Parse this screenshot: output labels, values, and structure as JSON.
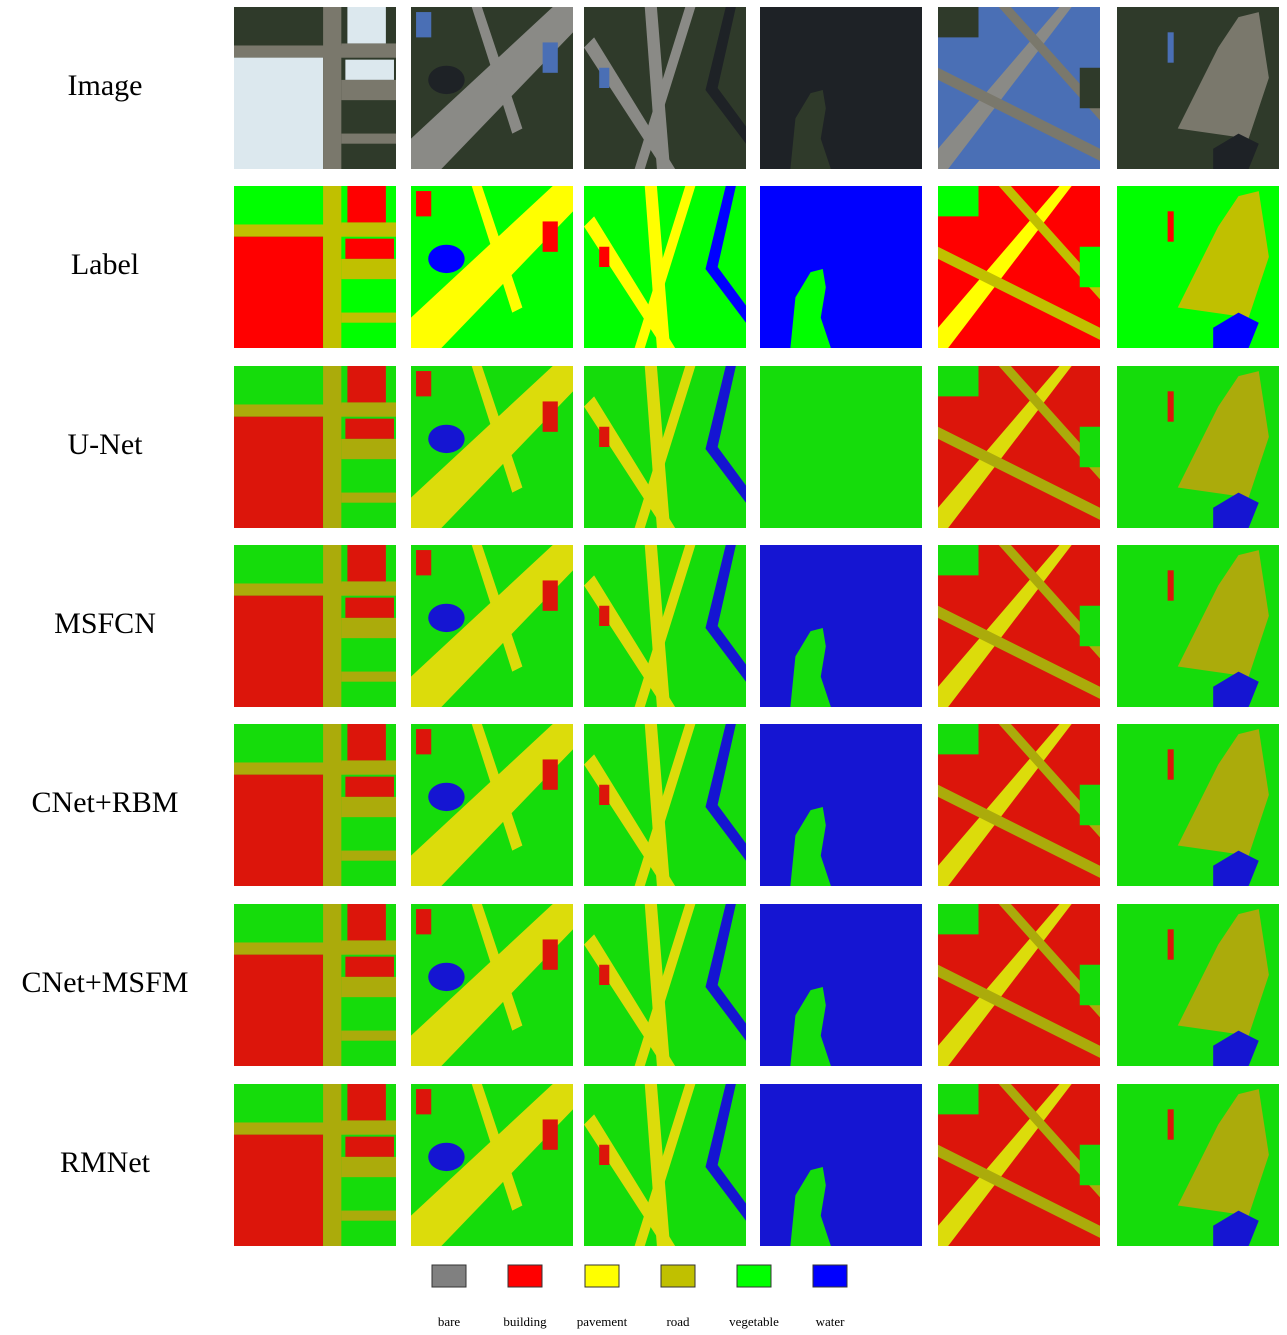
{
  "figure": {
    "rows": [
      "Image",
      "Label",
      "U-Net",
      "MSFCN",
      "CNet+RBM",
      "CNet+MSFM",
      "RMNet"
    ],
    "legend": [
      {
        "label": "bare",
        "color": "#808080"
      },
      {
        "label": "building",
        "color": "#ff0000"
      },
      {
        "label": "pavement",
        "color": "#ffff00"
      },
      {
        "label": "road",
        "color": "#c0c000"
      },
      {
        "label": "vegetable",
        "color": "#00ff00"
      },
      {
        "label": "water",
        "color": "#0000ff"
      }
    ]
  }
}
